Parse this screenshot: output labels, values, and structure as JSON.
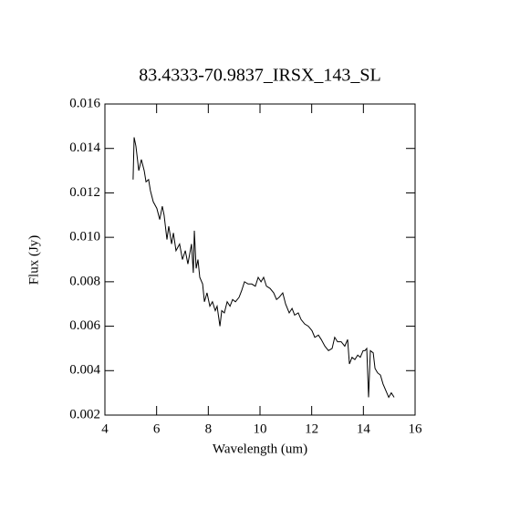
{
  "chart_data": {
    "type": "line",
    "title": "83.4333-70.9837_IRSX_143_SL",
    "x_label": "Wavelength (um)",
    "y_label": "Flux (Jy)",
    "xlim": [
      4,
      16
    ],
    "xticks": [
      4,
      6,
      8,
      10,
      12,
      14,
      16
    ],
    "ylim": [
      0.002,
      0.016
    ],
    "yticks": [
      0.002,
      0.004,
      0.006,
      0.008,
      {
        "value": 0.01,
        "label": "0.010"
      },
      0.012,
      0.014,
      0.016
    ],
    "series": [
      {
        "color": "#000000",
        "x": [
          5.09,
          5.13,
          5.2,
          5.31,
          5.41,
          5.52,
          5.59,
          5.69,
          5.76,
          5.87,
          6.01,
          6.12,
          6.22,
          6.29,
          6.4,
          6.47,
          6.58,
          6.65,
          6.75,
          6.89,
          7.0,
          7.11,
          7.21,
          7.35,
          7.42,
          7.46,
          7.53,
          7.6,
          7.67,
          7.78,
          7.85,
          7.95,
          8.06,
          8.16,
          8.27,
          8.34,
          8.45,
          8.52,
          8.62,
          8.73,
          8.84,
          8.94,
          9.05,
          9.19,
          9.29,
          9.4,
          9.54,
          9.68,
          9.82,
          9.93,
          10.04,
          10.14,
          10.25,
          10.39,
          10.53,
          10.64,
          10.74,
          10.88,
          10.99,
          11.13,
          11.24,
          11.34,
          11.48,
          11.59,
          11.73,
          11.87,
          12.01,
          12.12,
          12.26,
          12.37,
          12.51,
          12.65,
          12.79,
          12.89,
          13.0,
          13.14,
          13.28,
          13.39,
          13.46,
          13.56,
          13.67,
          13.78,
          13.88,
          13.99,
          14.06,
          14.13,
          14.2,
          14.27,
          14.38,
          14.45,
          14.55,
          14.66,
          14.76,
          14.87,
          14.98,
          15.08,
          15.19
        ],
        "values": [
          0.0126,
          0.0145,
          0.0141,
          0.013,
          0.0135,
          0.013,
          0.0125,
          0.0126,
          0.0121,
          0.0116,
          0.0113,
          0.0108,
          0.0114,
          0.011,
          0.0099,
          0.0105,
          0.0097,
          0.0102,
          0.0094,
          0.0097,
          0.009,
          0.0094,
          0.0088,
          0.0097,
          0.0084,
          0.0103,
          0.0086,
          0.009,
          0.0082,
          0.0079,
          0.0071,
          0.0075,
          0.0069,
          0.0071,
          0.0067,
          0.0069,
          0.006,
          0.0067,
          0.0066,
          0.0071,
          0.0069,
          0.0072,
          0.0071,
          0.0073,
          0.0076,
          0.008,
          0.0079,
          0.0079,
          0.0078,
          0.0082,
          0.008,
          0.0082,
          0.0078,
          0.0077,
          0.0075,
          0.0072,
          0.0073,
          0.0075,
          0.007,
          0.0066,
          0.0068,
          0.0065,
          0.0066,
          0.0063,
          0.0061,
          0.006,
          0.0058,
          0.0055,
          0.0056,
          0.0054,
          0.0051,
          0.0049,
          0.005,
          0.0055,
          0.0053,
          0.0053,
          0.0051,
          0.0054,
          0.0043,
          0.0046,
          0.0045,
          0.0047,
          0.0046,
          0.0049,
          0.0049,
          0.005,
          0.0028,
          0.0049,
          0.0048,
          0.0041,
          0.0039,
          0.0038,
          0.0034,
          0.0031,
          0.0028,
          0.003,
          0.0028
        ]
      }
    ]
  }
}
